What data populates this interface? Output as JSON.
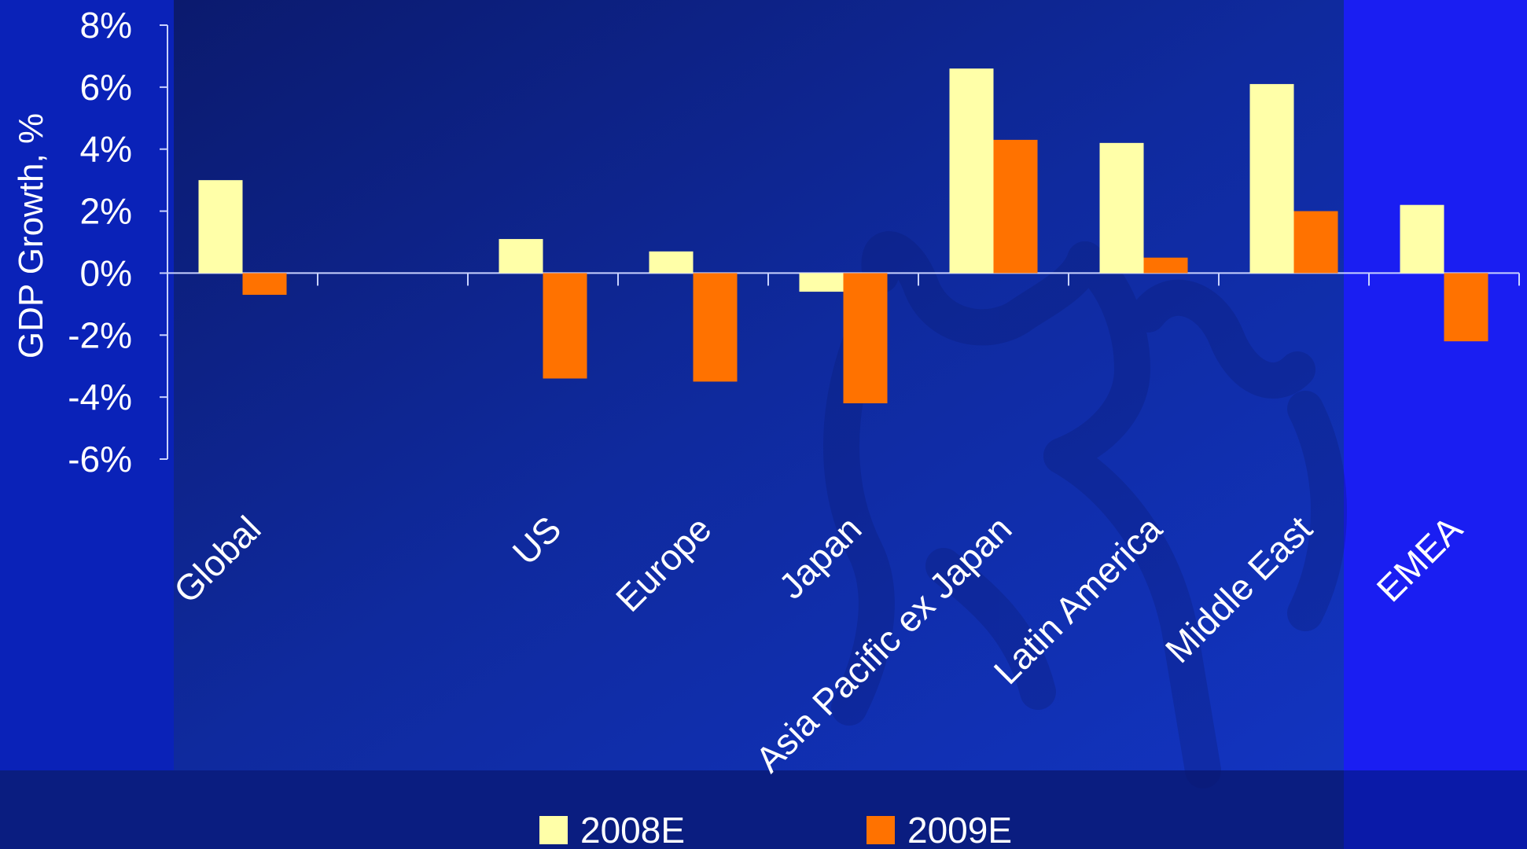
{
  "colors": {
    "background": "#0a1fb0",
    "panel_dark": "#0a1f78",
    "right_band": "#1a1ef2",
    "footer": "#091b78",
    "axis": "#c9d2ff",
    "series_2008": "#ffffa8",
    "series_2009": "#ff7200",
    "text": "#ffffff"
  },
  "chart_data": {
    "type": "bar",
    "title": "",
    "xlabel": "",
    "ylabel": "GDP Growth, %",
    "categories": [
      "Global",
      "",
      "US",
      "Europe",
      "Japan",
      "Asia Pacific ex Japan",
      "Latin America",
      "Middle East",
      "EMEA"
    ],
    "series": [
      {
        "name": "2008E",
        "values": [
          3.0,
          null,
          1.1,
          0.7,
          -0.6,
          6.6,
          4.2,
          6.1,
          2.2
        ]
      },
      {
        "name": "2009E",
        "values": [
          -0.7,
          null,
          -3.4,
          -3.5,
          -4.2,
          4.3,
          0.5,
          2.0,
          -2.2
        ]
      }
    ],
    "ylim": [
      -6,
      8
    ],
    "yticks": [
      "-6%",
      "-4%",
      "-2%",
      "0%",
      "2%",
      "4%",
      "6%",
      "8%"
    ],
    "ytick_values": [
      -6,
      -4,
      -2,
      0,
      2,
      4,
      6,
      8
    ],
    "grid": false,
    "legend_position": "bottom"
  },
  "decor": {
    "watermark": "bull-logo-icon"
  }
}
